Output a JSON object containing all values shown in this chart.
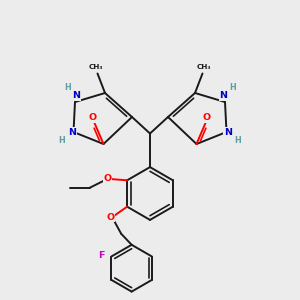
{
  "background_color": "#ececec",
  "bond_color": "#1a1a1a",
  "bond_width": 1.4,
  "atom_colors": {
    "O": "#ff0000",
    "N": "#0000cc",
    "H": "#5f9ea0",
    "F": "#cc00cc",
    "C": "#1a1a1a"
  },
  "figsize": [
    3.0,
    3.0
  ],
  "dpi": 100
}
